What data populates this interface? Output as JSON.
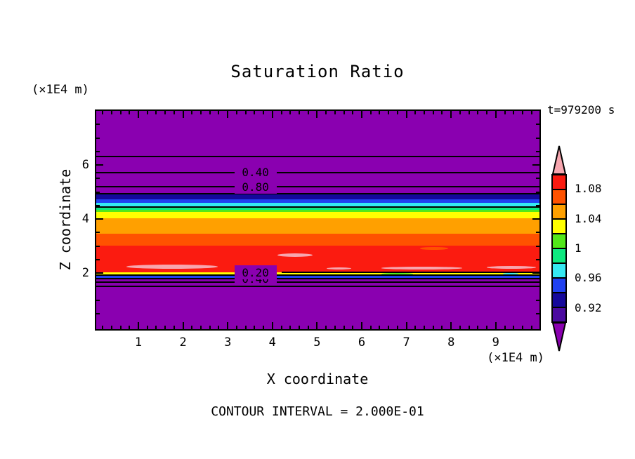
{
  "chart_data": {
    "type": "heatmap",
    "subtype": "filled-contour-plot",
    "title": "Saturation Ratio",
    "annotation": "t=979200 s",
    "xlabel": "X coordinate",
    "ylabel": "Z coordinate",
    "x_units": "(×1E4 m)",
    "y_units": "(×1E4 m)",
    "footer": "CONTOUR INTERVAL = 2.000E-01",
    "xlim": [
      0,
      10
    ],
    "ylim": [
      0,
      8
    ],
    "grid": false,
    "x_tick_labels": [
      "1",
      "2",
      "3",
      "4",
      "5",
      "6",
      "7",
      "8",
      "9"
    ],
    "x_minor_step": 0.2,
    "y_tick_labels": [
      "2",
      "4",
      "6"
    ],
    "y_minor_step": 0.5,
    "background_value_color": "#8A00B0",
    "bands": [
      {
        "name": "purple-top",
        "color": "#8A00B0",
        "value_range": [
          0.0,
          0.9
        ],
        "z": [
          8.1,
          4.91
        ]
      },
      {
        "name": "navy",
        "color": "#15089B",
        "value_range": [
          0.92,
          0.94
        ],
        "z": [
          4.91,
          4.73
        ]
      },
      {
        "name": "blue",
        "color": "#2041F0",
        "value_range": [
          0.94,
          0.96
        ],
        "z": [
          4.73,
          4.6
        ]
      },
      {
        "name": "cyan",
        "color": "#35E9F2",
        "value_range": [
          0.96,
          0.98
        ],
        "z": [
          4.6,
          4.44
        ]
      },
      {
        "name": "spring-green",
        "color": "#0DE87F",
        "value_range": [
          0.98,
          1.0
        ],
        "z": [
          4.44,
          4.34
        ]
      },
      {
        "name": "lime",
        "color": "#52E81A",
        "value_range": [
          1.0,
          1.02
        ],
        "z": [
          4.34,
          4.26
        ]
      },
      {
        "name": "yellow",
        "color": "#FFFF00",
        "value_range": [
          1.02,
          1.04
        ],
        "z": [
          4.26,
          4.03
        ]
      },
      {
        "name": "orange",
        "color": "#FFA000",
        "value_range": [
          1.04,
          1.06
        ],
        "z": [
          4.03,
          3.45
        ]
      },
      {
        "name": "orange-red",
        "color": "#FF5200",
        "value_range": [
          1.06,
          1.08
        ],
        "z": [
          3.45,
          3.01
        ]
      },
      {
        "name": "red-core",
        "color": "#FB1B10",
        "value_range": [
          1.08,
          1.1
        ],
        "z": [
          3.01,
          2.03
        ]
      },
      {
        "name": "yellow-lower",
        "color": "#FFFF00",
        "value_range": [
          1.02,
          1.04
        ],
        "z": [
          2.03,
          1.92
        ]
      },
      {
        "name": "blue-lower",
        "color": "#2041F0",
        "value_range": [
          0.94,
          0.96
        ],
        "z": [
          1.92,
          1.79
        ]
      },
      {
        "name": "purple-bottom",
        "color": "#8A00B0",
        "value_range": [
          0.0,
          0.9
        ],
        "z": [
          1.79,
          -0.1
        ]
      }
    ],
    "contour_lines": [
      {
        "value": "0.20",
        "z": 6.31,
        "labeled": false
      },
      {
        "value": "0.40",
        "z": 5.71,
        "labeled": true
      },
      {
        "value": "0.60",
        "z": 5.19,
        "labeled": false
      },
      {
        "value": "0.80",
        "z": 4.94,
        "labeled": false
      },
      {
        "value": "1.00",
        "z": 4.44,
        "labeled": false
      },
      {
        "value": "0.80",
        "z": 5.17,
        "labeled": true,
        "line_hidden": true
      },
      {
        "value": "1.00",
        "z": 2.02,
        "labeled": false,
        "x": [
          4.2,
          10
        ]
      },
      {
        "value": "0.80",
        "z": 1.92,
        "labeled": true,
        "label_dy": -5
      },
      {
        "value": "0.60",
        "z": 1.79,
        "labeled": false
      },
      {
        "value": "0.40",
        "z": 1.66,
        "labeled": true,
        "label_dy": -4
      },
      {
        "value": "0.20",
        "z": 1.51,
        "labeled": true,
        "label_dy": -19
      }
    ],
    "contour_label_x": 3.62,
    "streaks": [
      {
        "name": "over-saturation-streak",
        "color": "#F7A6AF",
        "x": [
          0.73,
          2.78
        ],
        "z": [
          2.31,
          2.16
        ]
      },
      {
        "name": "over-saturation-streak",
        "color": "#F7A6AF",
        "x": [
          4.11,
          4.9
        ],
        "z": [
          2.73,
          2.6
        ]
      },
      {
        "name": "over-saturation-streak",
        "color": "#F7A6AF",
        "x": [
          6.44,
          8.25
        ],
        "z": [
          2.23,
          2.13
        ]
      },
      {
        "name": "over-saturation-streak",
        "color": "#F7A6AF",
        "x": [
          8.8,
          9.9
        ],
        "z": [
          2.26,
          2.16
        ]
      },
      {
        "name": "over-saturation-streak",
        "color": "#F7A6AF",
        "x": [
          5.21,
          5.76
        ],
        "z": [
          2.21,
          2.13
        ]
      },
      {
        "name": "orange-red-streak",
        "color": "#FF5200",
        "x": [
          3.4,
          6.68
        ],
        "z": [
          3.25,
          3.12
        ]
      },
      {
        "name": "orange-red-streak",
        "color": "#FF5200",
        "x": [
          7.3,
          7.94
        ],
        "z": [
          2.96,
          2.86
        ]
      },
      {
        "name": "lime-fleck",
        "color": "#52E81A",
        "x": [
          6.44,
          7.15
        ],
        "z": [
          2.0,
          1.93
        ]
      },
      {
        "name": "cyan-fleck",
        "color": "#35E9F2",
        "x": [
          9.16,
          9.51
        ],
        "z": [
          2.0,
          1.93
        ]
      }
    ],
    "colorbar": {
      "over_color": "#F7A6AF",
      "under_color": "#8A00B0",
      "cells_top_to_bottom": [
        {
          "color": "#FB1B10",
          "range": [
            1.08,
            1.1
          ]
        },
        {
          "color": "#FF5200",
          "range": [
            1.06,
            1.08
          ]
        },
        {
          "color": "#FFA000",
          "range": [
            1.04,
            1.06
          ]
        },
        {
          "color": "#FFFF00",
          "range": [
            1.02,
            1.04
          ]
        },
        {
          "color": "#52E81A",
          "range": [
            1.0,
            1.02
          ]
        },
        {
          "color": "#0DE87F",
          "range": [
            0.98,
            1.0
          ]
        },
        {
          "color": "#35E9F2",
          "range": [
            0.96,
            0.98
          ]
        },
        {
          "color": "#2041F0",
          "range": [
            0.94,
            0.96
          ]
        },
        {
          "color": "#15089B",
          "range": [
            0.92,
            0.94
          ]
        },
        {
          "color": "#4B0AA0",
          "range": [
            0.9,
            0.92
          ]
        }
      ],
      "labels": [
        {
          "text": "1.08",
          "at_boundary": 1
        },
        {
          "text": "1.04",
          "at_boundary": 3
        },
        {
          "text": "1",
          "at_boundary": 5
        },
        {
          "text": "0.96",
          "at_boundary": 7
        },
        {
          "text": "0.92",
          "at_boundary": 9
        }
      ]
    }
  }
}
